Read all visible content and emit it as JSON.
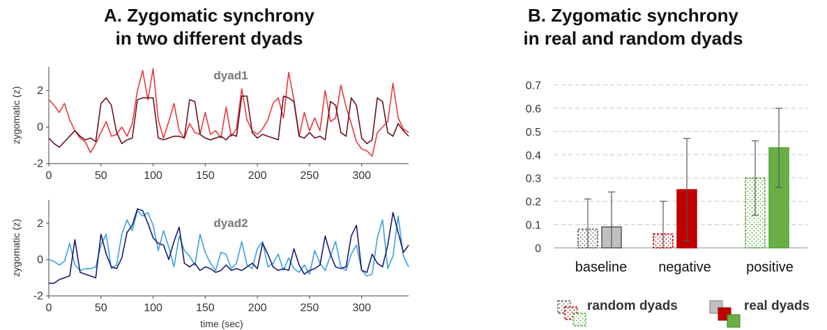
{
  "panel_a": {
    "title_line1": "A.  Zygomatic synchrony",
    "title_line2": "in two different dyads"
  },
  "panel_b": {
    "title_line1": "B. Zygomatic synchrony",
    "title_line2": "in real and random dyads"
  },
  "chart_data": [
    {
      "type": "line",
      "title": "dyad1",
      "xlabel": "",
      "ylabel": "zygomatic (z)",
      "xlim": [
        0,
        345
      ],
      "ylim": [
        -2,
        3.3
      ],
      "xticks": [
        0,
        50,
        100,
        150,
        200,
        250,
        300
      ],
      "yticks": [
        -2,
        0,
        2
      ],
      "grid": false,
      "series": [
        {
          "color": "#e8383d",
          "x": [
            0,
            5,
            10,
            15,
            20,
            25,
            30,
            35,
            40,
            45,
            50,
            55,
            60,
            65,
            70,
            75,
            80,
            85,
            90,
            95,
            100,
            105,
            110,
            115,
            120,
            125,
            130,
            135,
            140,
            145,
            150,
            155,
            160,
            165,
            170,
            175,
            180,
            185,
            190,
            195,
            200,
            205,
            210,
            215,
            220,
            225,
            230,
            235,
            240,
            245,
            250,
            255,
            260,
            265,
            270,
            275,
            280,
            285,
            290,
            295,
            300,
            305,
            310,
            315,
            320,
            325,
            330,
            335,
            340,
            345
          ],
          "y": [
            1.5,
            1.2,
            0.8,
            1.3,
            0.4,
            -0.2,
            -0.6,
            -0.8,
            -1.4,
            -0.9,
            -0.3,
            0.3,
            -0.5,
            -0.4,
            0.0,
            -0.5,
            0.2,
            2.0,
            3.1,
            1.5,
            3.2,
            0.4,
            -0.6,
            0.3,
            1.3,
            -0.2,
            -0.6,
            0.2,
            -0.3,
            -0.4,
            0.8,
            -0.4,
            -0.2,
            -0.6,
            1.1,
            -0.5,
            -0.1,
            2.1,
            0.4,
            -0.2,
            -0.4,
            -0.1,
            0.4,
            1.3,
            1.6,
            0.5,
            3.0,
            1.5,
            -0.5,
            0.8,
            -0.2,
            0.5,
            -0.2,
            2.0,
            0.3,
            0.5,
            2.3,
            1.1,
            0.2,
            -0.8,
            -1.2,
            -1.3,
            -1.6,
            -0.3,
            0.0,
            0.3,
            2.4,
            0.5,
            -0.1,
            -0.3
          ]
        },
        {
          "color": "#6b0f1a",
          "x": [
            0,
            5,
            10,
            15,
            20,
            25,
            30,
            35,
            40,
            45,
            50,
            55,
            60,
            65,
            70,
            75,
            80,
            85,
            90,
            95,
            100,
            105,
            110,
            115,
            120,
            125,
            130,
            135,
            140,
            145,
            150,
            155,
            160,
            165,
            170,
            175,
            180,
            185,
            190,
            195,
            200,
            205,
            210,
            215,
            220,
            225,
            230,
            235,
            240,
            245,
            250,
            255,
            260,
            265,
            270,
            275,
            280,
            285,
            290,
            295,
            300,
            305,
            310,
            315,
            320,
            325,
            330,
            335,
            340,
            345
          ],
          "y": [
            -0.6,
            -0.9,
            -1.1,
            -0.8,
            -0.5,
            -0.2,
            -0.5,
            -0.7,
            -0.6,
            -0.8,
            1.3,
            1.6,
            1.2,
            -0.3,
            -0.9,
            -0.7,
            -0.6,
            1.5,
            1.6,
            1.6,
            1.6,
            -0.6,
            -0.7,
            -0.6,
            -0.5,
            -0.5,
            -0.6,
            1.5,
            1.4,
            -0.4,
            -0.6,
            -0.7,
            -0.6,
            -0.5,
            -0.7,
            -0.4,
            -0.5,
            1.7,
            1.7,
            -0.3,
            -0.6,
            -0.4,
            -0.5,
            -0.6,
            -0.7,
            1.7,
            1.6,
            1.4,
            -0.5,
            -0.6,
            -0.3,
            -0.6,
            -0.5,
            -0.7,
            1.4,
            1.2,
            -0.3,
            -0.5,
            1.6,
            1.2,
            -0.6,
            -0.9,
            -0.7,
            1.6,
            1.4,
            -0.3,
            -0.5,
            0.2,
            -0.2,
            -0.5
          ]
        }
      ]
    },
    {
      "type": "line",
      "title": "dyad2",
      "xlabel": "time (sec)",
      "ylabel": "zygomatic (z)",
      "xlim": [
        0,
        345
      ],
      "ylim": [
        -2,
        3.3
      ],
      "xticks": [
        0,
        50,
        100,
        150,
        200,
        250,
        300
      ],
      "yticks": [
        -2,
        0,
        2
      ],
      "grid": false,
      "series": [
        {
          "color": "#3aa0e0",
          "x": [
            0,
            5,
            10,
            15,
            20,
            25,
            30,
            35,
            40,
            45,
            50,
            55,
            60,
            65,
            70,
            75,
            80,
            85,
            90,
            95,
            100,
            105,
            110,
            115,
            120,
            125,
            130,
            135,
            140,
            145,
            150,
            155,
            160,
            165,
            170,
            175,
            180,
            185,
            190,
            195,
            200,
            205,
            210,
            215,
            220,
            225,
            230,
            235,
            240,
            245,
            250,
            255,
            260,
            265,
            270,
            275,
            280,
            285,
            290,
            295,
            300,
            305,
            310,
            315,
            320,
            325,
            330,
            335,
            340,
            345
          ],
          "y": [
            0.0,
            -0.1,
            -0.3,
            -0.1,
            0.9,
            -0.3,
            -0.6,
            -0.5,
            -0.5,
            -0.4,
            0.8,
            1.4,
            -0.5,
            -0.3,
            1.4,
            2.2,
            1.6,
            2.7,
            2.4,
            2.6,
            1.9,
            0.5,
            1.6,
            0.7,
            -0.4,
            1.3,
            0.5,
            0.2,
            -0.3,
            1.4,
            0.4,
            -0.2,
            -0.6,
            0.4,
            0.3,
            -0.5,
            -0.2,
            1.0,
            -0.3,
            -0.5,
            0.6,
            1.0,
            -0.4,
            -0.2,
            0.3,
            -0.6,
            0.1,
            -0.5,
            -0.7,
            -0.3,
            -0.8,
            0.5,
            -0.2,
            -0.6,
            0.2,
            1.0,
            -0.4,
            -0.6,
            0.3,
            0.8,
            -0.6,
            -0.9,
            -0.8,
            1.2,
            2.2,
            -0.5,
            0.2,
            2.4,
            0.2,
            -0.4
          ]
        },
        {
          "color": "#1a1a6e",
          "x": [
            0,
            5,
            10,
            15,
            20,
            25,
            30,
            35,
            40,
            45,
            50,
            55,
            60,
            65,
            70,
            75,
            80,
            85,
            90,
            95,
            100,
            105,
            110,
            115,
            120,
            125,
            130,
            135,
            140,
            145,
            150,
            155,
            160,
            165,
            170,
            175,
            180,
            185,
            190,
            195,
            200,
            205,
            210,
            215,
            220,
            225,
            230,
            235,
            240,
            245,
            250,
            255,
            260,
            265,
            270,
            275,
            280,
            285,
            290,
            295,
            300,
            305,
            310,
            315,
            320,
            325,
            330,
            335,
            340,
            345
          ],
          "y": [
            -1.3,
            -1.3,
            -1.1,
            -1.0,
            -0.9,
            1.1,
            -0.7,
            -0.8,
            -0.9,
            -1.0,
            1.4,
            0.3,
            -0.4,
            -0.5,
            0.1,
            1.5,
            1.9,
            2.8,
            2.7,
            2.0,
            1.2,
            0.9,
            0.8,
            0.0,
            1.0,
            1.8,
            -0.2,
            -0.4,
            -0.2,
            -0.6,
            -0.4,
            -0.5,
            -0.7,
            -0.6,
            -0.3,
            -0.6,
            -0.5,
            -0.6,
            -0.4,
            -0.2,
            -0.5,
            0.9,
            0.3,
            -0.4,
            -0.6,
            -0.5,
            -0.6,
            0.6,
            -0.3,
            -0.8,
            -0.6,
            -0.5,
            -0.3,
            1.3,
            0.3,
            -0.4,
            -0.5,
            -0.4,
            1.3,
            1.9,
            -0.6,
            -0.7,
            0.3,
            -0.2,
            -0.4,
            0.8,
            2.6,
            1.5,
            0.4,
            0.8
          ]
        }
      ]
    },
    {
      "type": "bar",
      "title": "",
      "xlabel": "",
      "ylabel": "",
      "ylim": [
        0,
        0.7
      ],
      "yticks": [
        "0",
        "0.1",
        "0.2",
        "0.3",
        "0.4",
        "0.5",
        "0.6",
        "0.7"
      ],
      "grid": true,
      "categories": [
        "baseline",
        "negative",
        "positive"
      ],
      "series": [
        {
          "name": "random dyads",
          "values": [
            0.08,
            0.06,
            0.3
          ],
          "err_low": [
            0.0,
            0.0,
            0.14
          ],
          "err_high": [
            0.21,
            0.2,
            0.46
          ]
        },
        {
          "name": "real dyads",
          "values": [
            0.09,
            0.25,
            0.43
          ],
          "err_low": [
            0.0,
            0.03,
            0.26
          ],
          "err_high": [
            0.24,
            0.47,
            0.6
          ]
        }
      ],
      "colors": {
        "baseline": "#555555",
        "negative": "#c00000",
        "positive": "#4ea72e",
        "baseline_fill": "#c0c0c0",
        "negative_fill": "#c00000",
        "positive_fill": "#6aaf45"
      },
      "legend_placement": "bottom"
    }
  ]
}
